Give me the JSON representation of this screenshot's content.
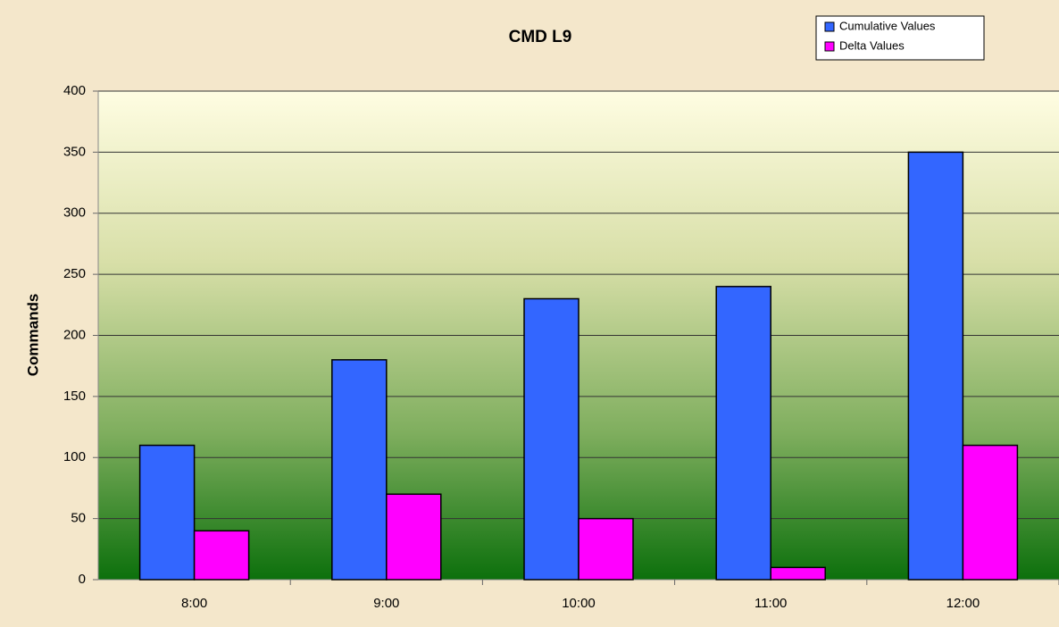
{
  "chart_data": {
    "type": "bar",
    "title": "CMD L9",
    "y_label": "Commands",
    "categories": [
      "8:00",
      "9:00",
      "10:00",
      "11:00",
      "12:00"
    ],
    "series": [
      {
        "name": "Cumulative Values",
        "color": "#3366ff",
        "values": [
          110,
          180,
          230,
          240,
          350
        ]
      },
      {
        "name": "Delta Values",
        "color": "#ff00ff",
        "values": [
          40,
          70,
          50,
          10,
          110
        ]
      }
    ],
    "ylim": [
      0,
      400
    ],
    "yticks": [
      0,
      50,
      100,
      150,
      200,
      250,
      300,
      350,
      400
    ],
    "grid": true,
    "legend": "top-right"
  }
}
